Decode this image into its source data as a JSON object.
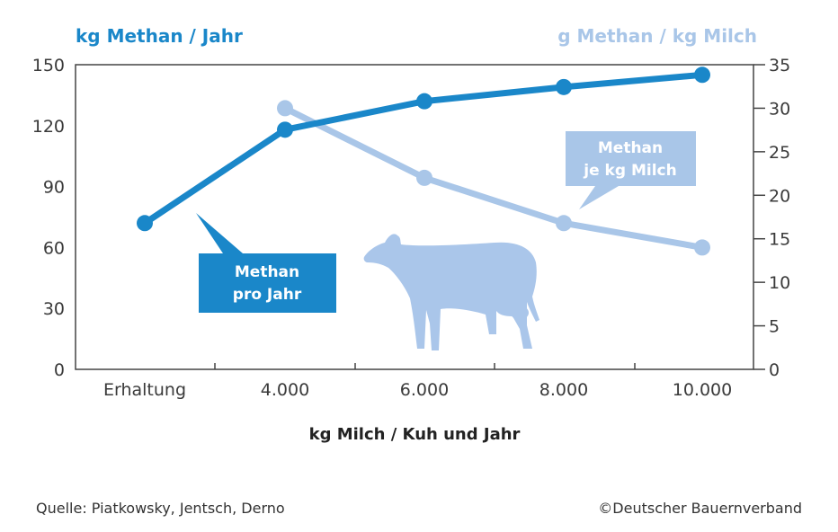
{
  "chart_data": {
    "type": "line",
    "categories": [
      "Erhaltung",
      "4.000",
      "6.000",
      "8.000",
      "10.000"
    ],
    "series": [
      {
        "name": "Methan pro Jahr",
        "axis": "left",
        "color": "#1a87c9",
        "values": [
          72,
          118,
          132,
          139,
          145
        ]
      },
      {
        "name": "Methan je kg Milch",
        "axis": "right",
        "color": "#a9c6e8",
        "values": [
          null,
          30,
          22,
          16.8,
          14
        ]
      }
    ],
    "ylabel_left": "kg Methan / Jahr",
    "ylabel_right": "g Methan / kg Milch",
    "xlabel": "kg Milch / Kuh und Jahr",
    "ylim_left": [
      0,
      150
    ],
    "ylim_right": [
      0,
      35
    ],
    "yticks_left": [
      "0",
      "30",
      "60",
      "90",
      "120",
      "150"
    ],
    "yticks_right": [
      "0",
      "5",
      "10",
      "15",
      "20",
      "25",
      "30",
      "35"
    ],
    "callouts": {
      "methan_pro_jahr": [
        "Methan",
        "pro Jahr"
      ],
      "methan_je_kg": [
        "Methan",
        "je kg Milch"
      ]
    },
    "grid": false
  },
  "footer": {
    "source": "Quelle: Piatkowsky, Jentsch, Derno",
    "copyright": "©Deutscher Bauernverband"
  },
  "colors": {
    "dark_blue": "#1a87c9",
    "light_blue": "#a9c6e8",
    "axis": "#444444"
  },
  "icons": {
    "illustration": "cow-icon"
  }
}
